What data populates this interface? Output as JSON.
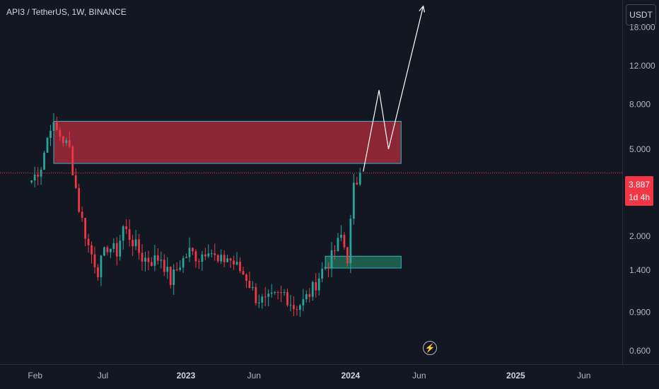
{
  "header": {
    "title": "API3 / TetherUS, 1W, BINANCE"
  },
  "axis": {
    "currency": "USDT"
  },
  "price": {
    "current": "3.887",
    "countdown": "1d 4h"
  },
  "icons": {
    "bolt": "lightning-bolt-icon"
  },
  "colors": {
    "background": "#131722",
    "up": "#26a69a",
    "down": "#f23645",
    "resistance_zone": "#8b2634",
    "support_zone": "#1e5c4a",
    "zone_border": "#2fb3c4",
    "projection": "#ffffff"
  },
  "chart_data": {
    "type": "candlestick",
    "title": "API3 / TetherUS, 1W, BINANCE",
    "yscale": "log",
    "ylim": [
      0.52,
      24
    ],
    "y_ticks": [
      "18.000",
      "12.000",
      "8.000",
      "5.000",
      "2.000",
      "1.400",
      "0.900",
      "0.600"
    ],
    "y_tick_values": [
      18,
      12,
      8,
      5,
      2,
      1.4,
      0.9,
      0.6
    ],
    "x_ticks": [
      {
        "label": "Feb",
        "date": "2022-02-01",
        "bold": false
      },
      {
        "label": "Jul",
        "date": "2022-07-01",
        "bold": false
      },
      {
        "label": "2023",
        "date": "2023-01-01",
        "bold": true
      },
      {
        "label": "Jun",
        "date": "2023-06-01",
        "bold": false
      },
      {
        "label": "2024",
        "date": "2024-01-01",
        "bold": true
      },
      {
        "label": "Jun",
        "date": "2024-06-01",
        "bold": false
      },
      {
        "label": "2025",
        "date": "2025-01-01",
        "bold": true
      },
      {
        "label": "Jun",
        "date": "2025-06-01",
        "bold": false
      }
    ],
    "x_range": [
      "2021-11-15",
      "2025-08-25"
    ],
    "last_price": 3.887,
    "anchors": [
      [
        "2022-01-24",
        3.6
      ],
      [
        "2022-02-14",
        4.2
      ],
      [
        "2022-03-07",
        6.5
      ],
      [
        "2022-03-28",
        5.8
      ],
      [
        "2022-04-18",
        5.0
      ],
      [
        "2022-05-09",
        2.7
      ],
      [
        "2022-05-30",
        1.8
      ],
      [
        "2022-06-20",
        1.4
      ],
      [
        "2022-07-11",
        1.8
      ],
      [
        "2022-08-01",
        1.7
      ],
      [
        "2022-08-15",
        2.2
      ],
      [
        "2022-09-05",
        1.9
      ],
      [
        "2022-09-26",
        1.6
      ],
      [
        "2022-10-17",
        1.55
      ],
      [
        "2022-11-07",
        1.6
      ],
      [
        "2022-11-28",
        1.25
      ],
      [
        "2022-12-19",
        1.5
      ],
      [
        "2023-01-09",
        1.7
      ],
      [
        "2023-01-30",
        1.6
      ],
      [
        "2023-02-20",
        1.8
      ],
      [
        "2023-03-13",
        1.5
      ],
      [
        "2023-04-03",
        1.6
      ],
      [
        "2023-04-24",
        1.45
      ],
      [
        "2023-05-15",
        1.3
      ],
      [
        "2023-06-05",
        1.05
      ],
      [
        "2023-06-26",
        1.0
      ],
      [
        "2023-07-17",
        1.05
      ],
      [
        "2023-08-07",
        1.1
      ],
      [
        "2023-08-28",
        0.95
      ],
      [
        "2023-09-18",
        1.0
      ],
      [
        "2023-10-09",
        1.15
      ],
      [
        "2023-10-30",
        1.4
      ],
      [
        "2023-11-20",
        1.6
      ],
      [
        "2023-12-11",
        2.0
      ],
      [
        "2023-12-25",
        1.6
      ],
      [
        "2024-01-08",
        3.3
      ],
      [
        "2024-01-22",
        3.887
      ]
    ],
    "zones": [
      {
        "name": "resistance",
        "from": "2022-03-14",
        "to": "2024-04-22",
        "low": 4.3,
        "high": 6.7
      },
      {
        "name": "support",
        "from": "2023-11-06",
        "to": "2024-04-22",
        "low": 1.43,
        "high": 1.62
      }
    ],
    "projection": [
      [
        "2024-01-29",
        3.95
      ],
      [
        "2024-03-04",
        9.3
      ],
      [
        "2024-03-25",
        5.0
      ],
      [
        "2024-06-10",
        22.5
      ]
    ]
  }
}
